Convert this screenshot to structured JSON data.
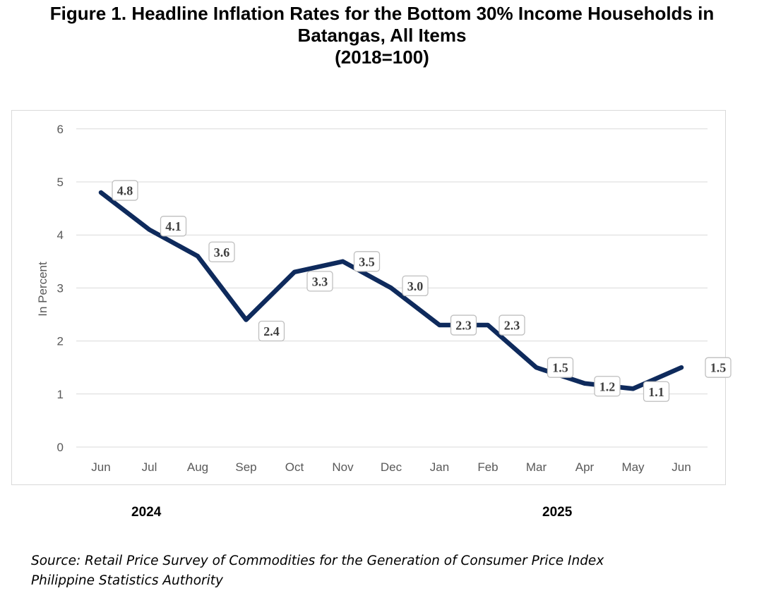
{
  "title": {
    "line1": "Figure 1. Headline Inflation Rates for the Bottom 30% Income Households in",
    "line2": "Batangas, All Items",
    "line3": "(2018=100)"
  },
  "years": [
    "2024",
    "2025"
  ],
  "source": {
    "line1": "Source: Retail Price Survey of Commodities for the Generation of Consumer Price Index",
    "line2": "Philippine Statistics Authority"
  },
  "colors": {
    "line": "#0e2a5c",
    "grid": "#d9d9d9",
    "label_border": "#bfbfbf",
    "axis_text": "#595959"
  },
  "chart_data": {
    "type": "line",
    "ylabel": "In Percent",
    "xlabel": "",
    "ylim": [
      0,
      6
    ],
    "yticks": [
      0,
      1,
      2,
      3,
      4,
      5,
      6
    ],
    "grid": true,
    "categories": [
      "Jun",
      "Jul",
      "Aug",
      "Sep",
      "Oct",
      "Nov",
      "Dec",
      "Jan",
      "Feb",
      "Mar",
      "Apr",
      "May",
      "Jun"
    ],
    "series": [
      {
        "values": [
          4.8,
          4.1,
          3.6,
          2.4,
          3.3,
          3.5,
          3.0,
          2.3,
          2.3,
          1.5,
          1.2,
          1.1,
          1.5
        ]
      }
    ],
    "data_labels": [
      "4.8",
      "4.1",
      "3.6",
      "2.4",
      "3.3",
      "3.5",
      "3.0",
      "2.3",
      "2.3",
      "1.5",
      "1.2",
      "1.1",
      "1.5"
    ]
  }
}
